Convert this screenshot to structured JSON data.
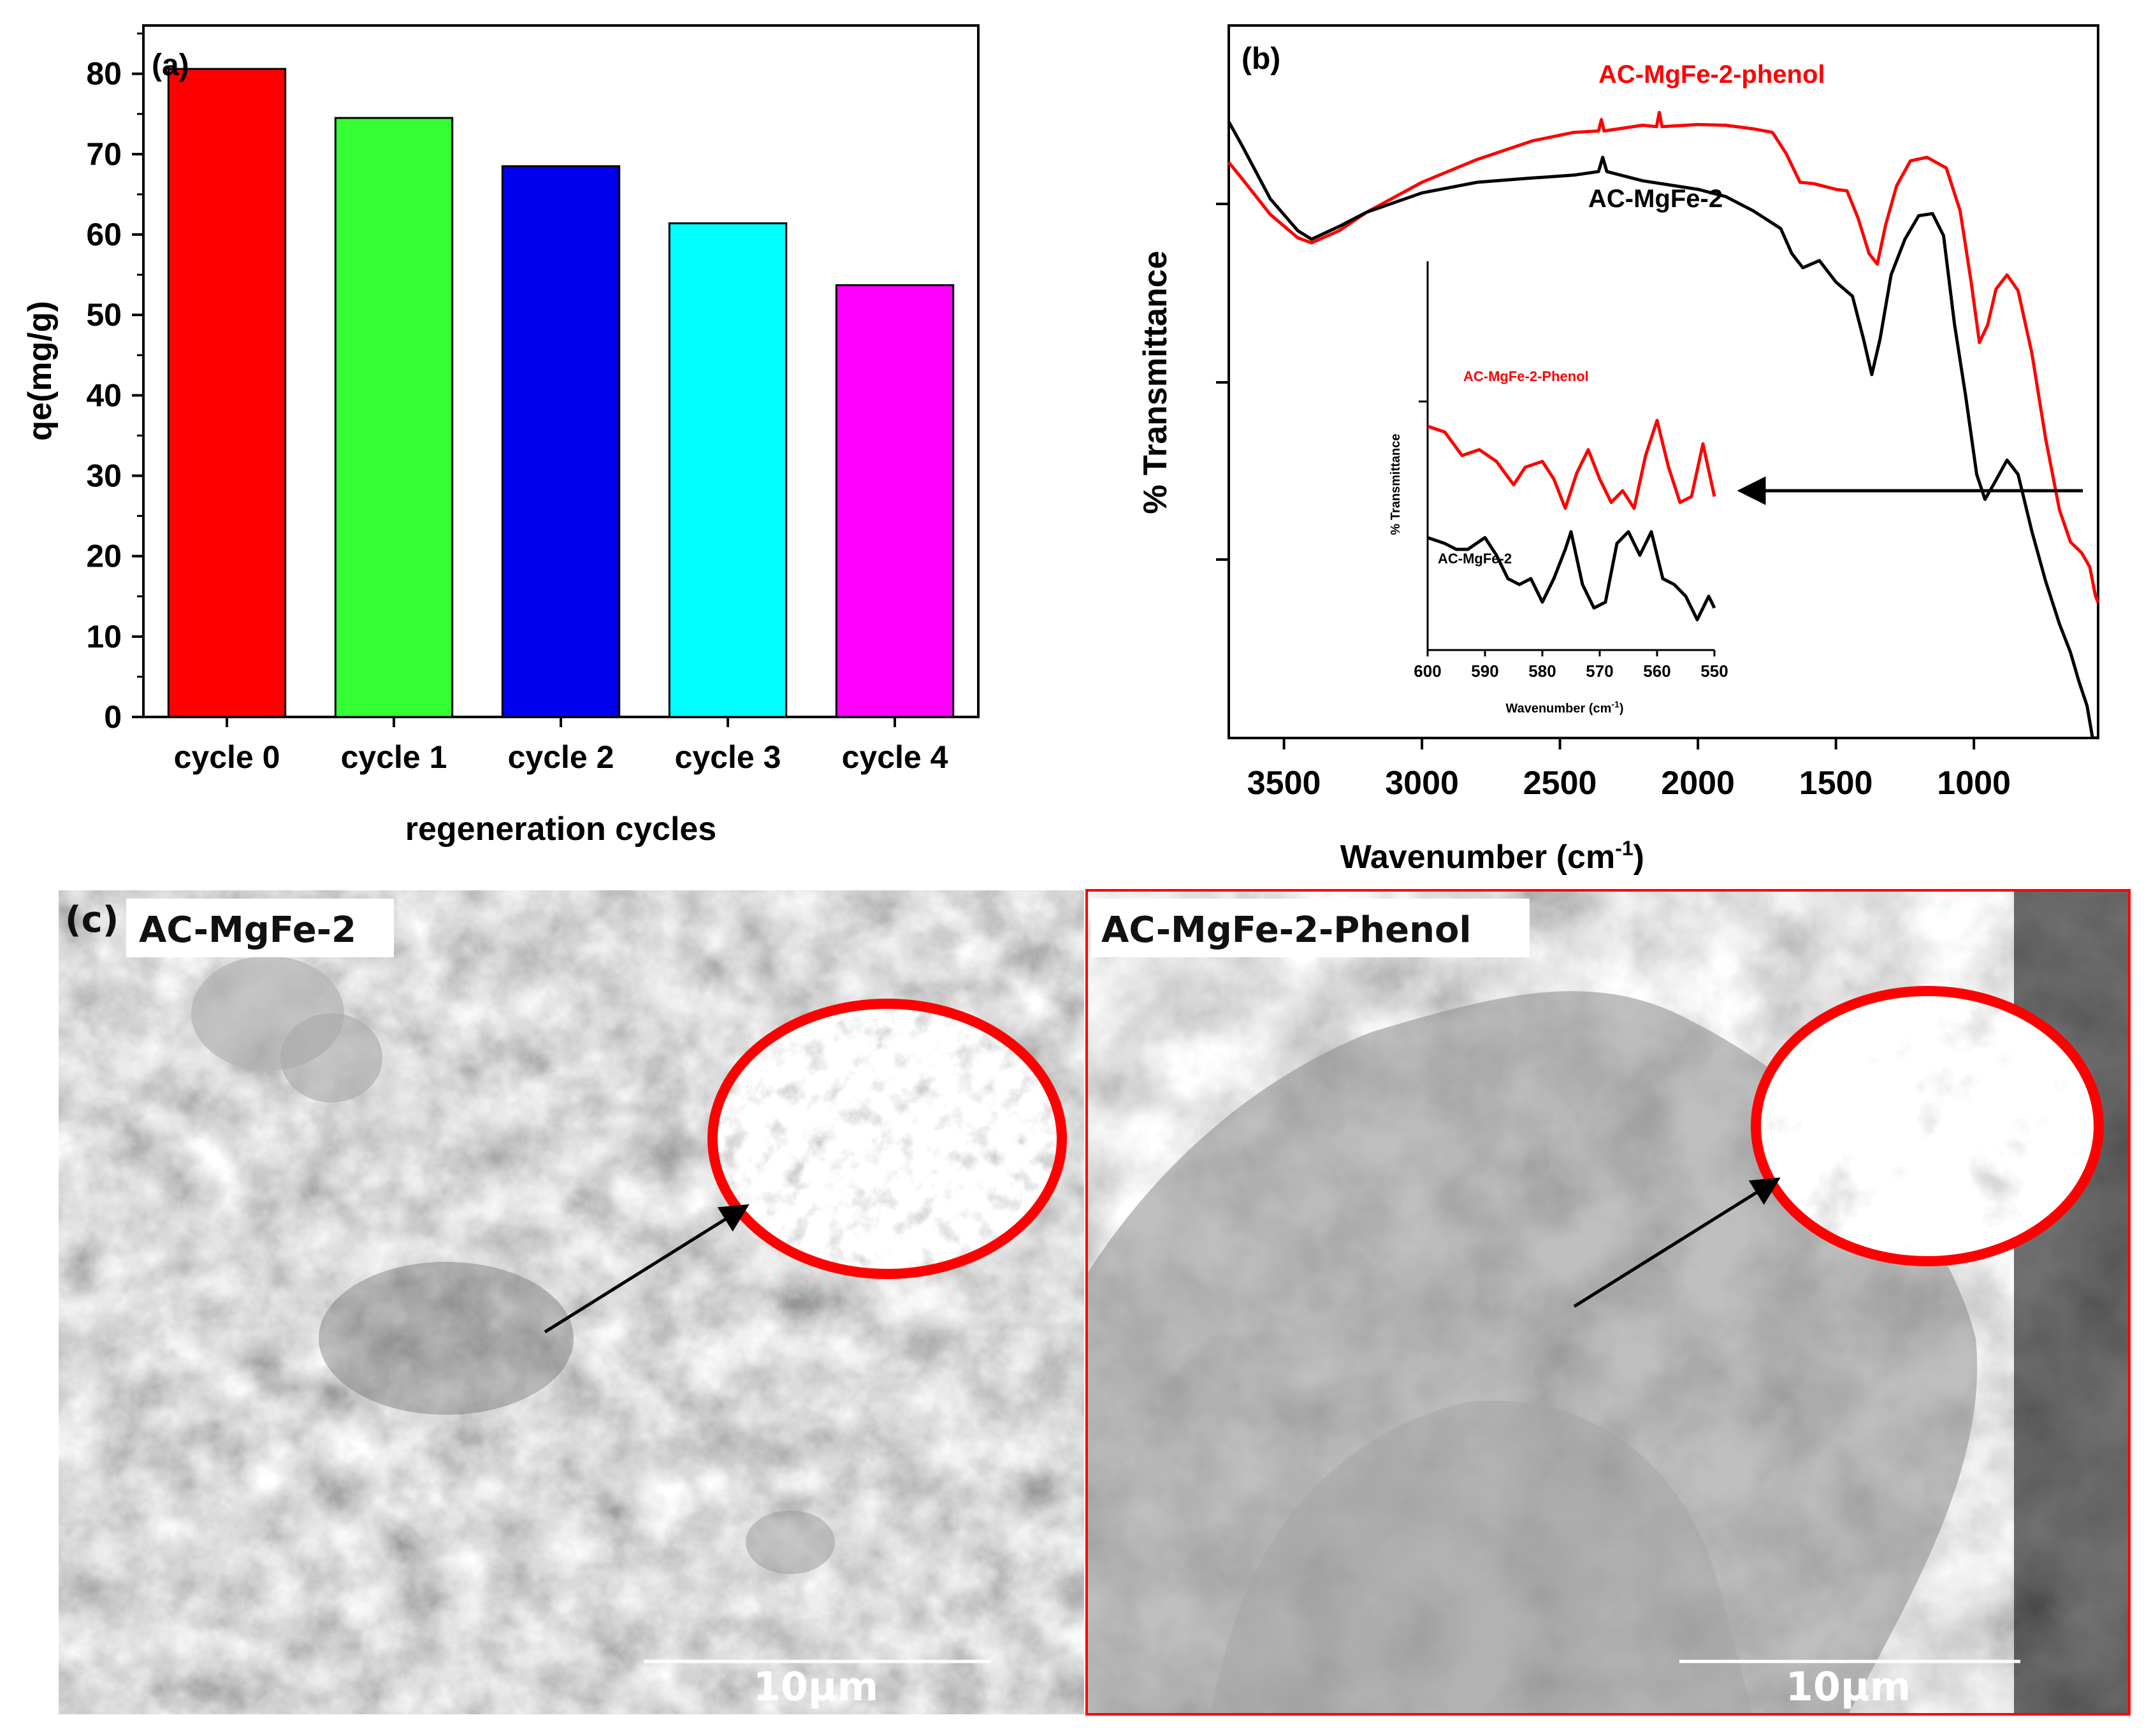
{
  "chart_data": [
    {
      "panel": "(a)",
      "type": "bar",
      "categories": [
        "cycle 0",
        "cycle 1",
        "cycle 2",
        "cycle 3",
        "cycle 4"
      ],
      "values": [
        80.6,
        74.5,
        68.5,
        61.4,
        53.7
      ],
      "colors": [
        "#ff0000",
        "#33ff33",
        "#0000ee",
        "#00ffff",
        "#ff00ff"
      ],
      "xlabel": "regeneration cycles",
      "ylabel": "qe(mg/g)",
      "ylim": [
        0,
        86
      ],
      "yticks": [
        0,
        10,
        20,
        30,
        40,
        50,
        60,
        70,
        80
      ],
      "grid": false
    },
    {
      "panel": "(b)",
      "type": "line",
      "xlabel": "Wavenumber (cm",
      "xlabel_sup": "-1",
      "xlabel_close": ")",
      "ylabel": "% Transmittance",
      "xlim": [
        3700,
        550
      ],
      "xticks": [
        3500,
        3000,
        2500,
        2000,
        1500,
        1000
      ],
      "x_reversed": true,
      "grid": false,
      "series": [
        {
          "name": "AC-MgFe-2-phenol",
          "color": "#ff0000",
          "points": [
            [
              3700,
              0.808
            ],
            [
              3650,
              0.784
            ],
            [
              3550,
              0.735
            ],
            [
              3450,
              0.702
            ],
            [
              3400,
              0.695
            ],
            [
              3300,
              0.712
            ],
            [
              3200,
              0.738
            ],
            [
              3000,
              0.78
            ],
            [
              2800,
              0.812
            ],
            [
              2600,
              0.838
            ],
            [
              2450,
              0.85
            ],
            [
              2360,
              0.852
            ],
            [
              2350,
              0.868
            ],
            [
              2340,
              0.852
            ],
            [
              2200,
              0.86
            ],
            [
              2150,
              0.858
            ],
            [
              2140,
              0.878
            ],
            [
              2130,
              0.858
            ],
            [
              2000,
              0.861
            ],
            [
              1900,
              0.86
            ],
            [
              1800,
              0.855
            ],
            [
              1730,
              0.85
            ],
            [
              1680,
              0.82
            ],
            [
              1630,
              0.78
            ],
            [
              1580,
              0.778
            ],
            [
              1500,
              0.77
            ],
            [
              1460,
              0.768
            ],
            [
              1420,
              0.73
            ],
            [
              1380,
              0.68
            ],
            [
              1350,
              0.665
            ],
            [
              1320,
              0.72
            ],
            [
              1280,
              0.775
            ],
            [
              1230,
              0.81
            ],
            [
              1170,
              0.815
            ],
            [
              1100,
              0.8
            ],
            [
              1050,
              0.74
            ],
            [
              1010,
              0.64
            ],
            [
              980,
              0.555
            ],
            [
              950,
              0.58
            ],
            [
              920,
              0.63
            ],
            [
              880,
              0.65
            ],
            [
              840,
              0.628
            ],
            [
              790,
              0.54
            ],
            [
              740,
              0.42
            ],
            [
              690,
              0.32
            ],
            [
              650,
              0.275
            ],
            [
              610,
              0.26
            ],
            [
              580,
              0.24
            ],
            [
              560,
              0.2
            ],
            [
              550,
              0.19
            ]
          ]
        },
        {
          "name": "AC-MgFe-2",
          "color": "#000000",
          "points": [
            [
              3700,
              0.865
            ],
            [
              3650,
              0.83
            ],
            [
              3550,
              0.757
            ],
            [
              3450,
              0.712
            ],
            [
              3400,
              0.7
            ],
            [
              3300,
              0.718
            ],
            [
              3200,
              0.738
            ],
            [
              3000,
              0.765
            ],
            [
              2800,
              0.78
            ],
            [
              2600,
              0.786
            ],
            [
              2450,
              0.79
            ],
            [
              2360,
              0.795
            ],
            [
              2345,
              0.815
            ],
            [
              2330,
              0.795
            ],
            [
              2200,
              0.782
            ],
            [
              2000,
              0.77
            ],
            [
              1900,
              0.76
            ],
            [
              1800,
              0.74
            ],
            [
              1700,
              0.715
            ],
            [
              1660,
              0.68
            ],
            [
              1620,
              0.66
            ],
            [
              1560,
              0.67
            ],
            [
              1500,
              0.64
            ],
            [
              1440,
              0.62
            ],
            [
              1400,
              0.56
            ],
            [
              1370,
              0.51
            ],
            [
              1340,
              0.56
            ],
            [
              1300,
              0.65
            ],
            [
              1250,
              0.7
            ],
            [
              1200,
              0.733
            ],
            [
              1150,
              0.736
            ],
            [
              1110,
              0.705
            ],
            [
              1070,
              0.58
            ],
            [
              1030,
              0.48
            ],
            [
              990,
              0.37
            ],
            [
              960,
              0.335
            ],
            [
              930,
              0.355
            ],
            [
              880,
              0.39
            ],
            [
              840,
              0.37
            ],
            [
              790,
              0.29
            ],
            [
              740,
              0.22
            ],
            [
              690,
              0.16
            ],
            [
              650,
              0.12
            ],
            [
              620,
              0.08
            ],
            [
              590,
              0.045
            ],
            [
              570,
              0.0
            ],
            [
              550,
              0.0
            ]
          ]
        }
      ],
      "labels": {
        "red": "AC-MgFe-2-phenol",
        "black": "AC-MgFe-2"
      },
      "inset": {
        "type": "line",
        "xlabel": "Wavenumber (cm",
        "xlabel_sup": "-1",
        "xlabel_close": ")",
        "ylabel": "% Transmittance",
        "xlim": [
          600,
          550
        ],
        "xticks": [
          600,
          590,
          580,
          570,
          560,
          550
        ],
        "series": [
          {
            "name": "AC-MgFe-2-Phenol",
            "color": "#ff0000",
            "points": [
              [
                600,
                0.72
              ],
              [
                597,
                0.7
              ],
              [
                594,
                0.62
              ],
              [
                591,
                0.64
              ],
              [
                588,
                0.6
              ],
              [
                585,
                0.52
              ],
              [
                583,
                0.58
              ],
              [
                580,
                0.6
              ],
              [
                578,
                0.54
              ],
              [
                576,
                0.44
              ],
              [
                574,
                0.56
              ],
              [
                572,
                0.64
              ],
              [
                570,
                0.54
              ],
              [
                568,
                0.46
              ],
              [
                566,
                0.5
              ],
              [
                564,
                0.44
              ],
              [
                562,
                0.62
              ],
              [
                560,
                0.74
              ],
              [
                558,
                0.58
              ],
              [
                556,
                0.46
              ],
              [
                554,
                0.48
              ],
              [
                552,
                0.66
              ],
              [
                550,
                0.48
              ]
            ]
          },
          {
            "name": "AC-MgFe-2",
            "color": "#000000",
            "points": [
              [
                600,
                0.34
              ],
              [
                597,
                0.32
              ],
              [
                595,
                0.3
              ],
              [
                593,
                0.3
              ],
              [
                590,
                0.34
              ],
              [
                588,
                0.28
              ],
              [
                586,
                0.2
              ],
              [
                584,
                0.18
              ],
              [
                582,
                0.2
              ],
              [
                580,
                0.12
              ],
              [
                578,
                0.2
              ],
              [
                576,
                0.3
              ],
              [
                575,
                0.36
              ],
              [
                573,
                0.18
              ],
              [
                571,
                0.1
              ],
              [
                569,
                0.12
              ],
              [
                567,
                0.32
              ],
              [
                565,
                0.36
              ],
              [
                563,
                0.28
              ],
              [
                561,
                0.36
              ],
              [
                559,
                0.2
              ],
              [
                557,
                0.18
              ],
              [
                555,
                0.14
              ],
              [
                553,
                0.06
              ],
              [
                551,
                0.14
              ],
              [
                550,
                0.1
              ]
            ]
          }
        ],
        "labels": {
          "red": "AC-MgFe-2-Phenol",
          "black": "AC-MgFe-2"
        }
      }
    }
  ],
  "panel_c": {
    "panel_label": "(c)",
    "left_label": "AC-MgFe-2",
    "right_label": "AC-MgFe-2-Phenol",
    "left_scale": "10µm",
    "right_scale": "10µm",
    "highlight_color": "#ff0000"
  }
}
